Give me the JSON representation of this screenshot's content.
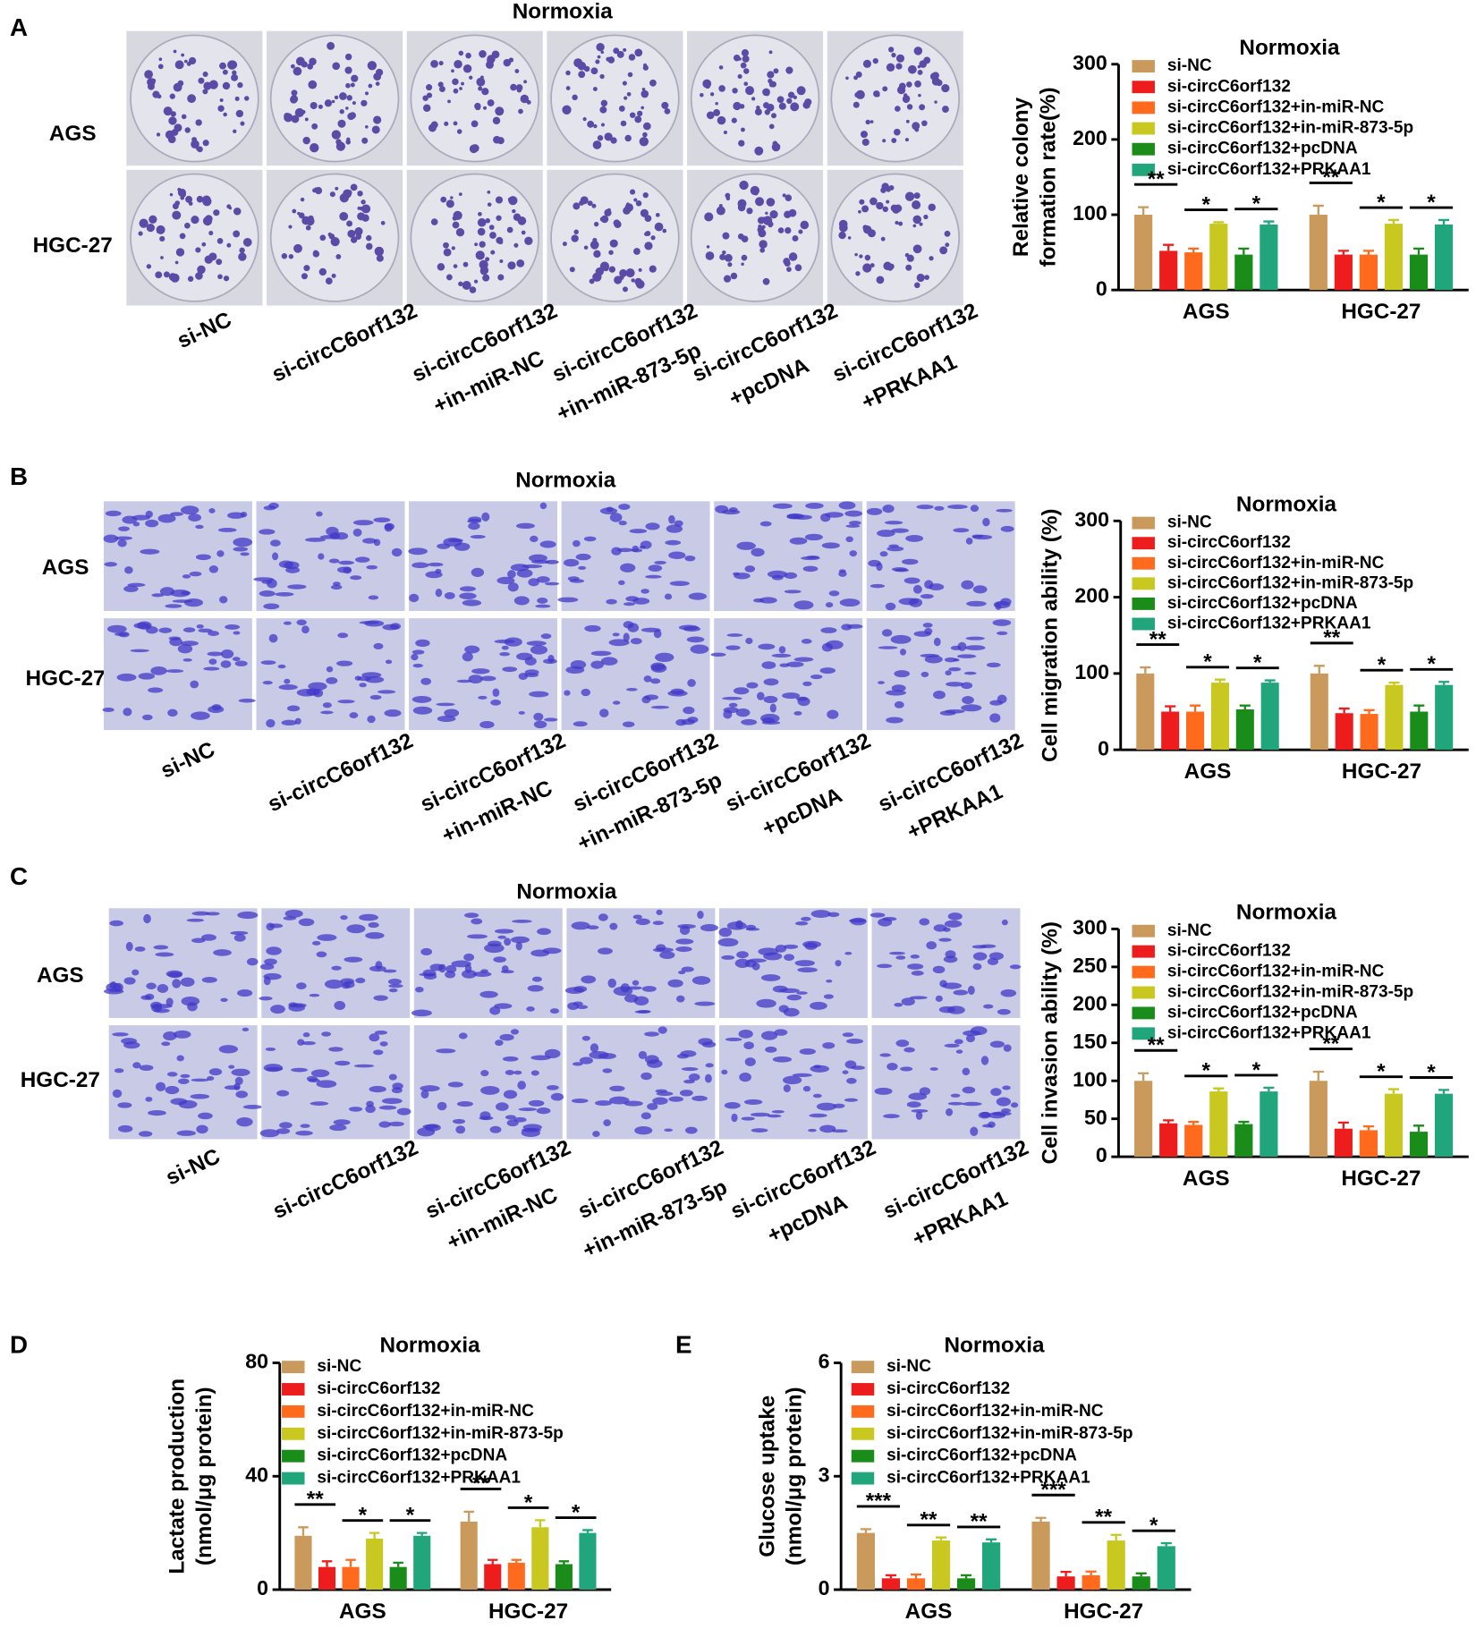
{
  "panels": [
    {
      "letter": "A",
      "title": "Normoxia",
      "rows": [
        "AGS",
        "HGC-27"
      ],
      "columns": [
        [
          "si-NC"
        ],
        [
          "si-circC6orf132"
        ],
        [
          "si-circC6orf132",
          "+in-miR-NC"
        ],
        [
          "si-circC6orf132",
          "+in-miR-873-5p"
        ],
        [
          "si-circC6orf132",
          "+pcDNA"
        ],
        [
          "si-circC6orf132",
          "+PRKAA1"
        ]
      ]
    },
    {
      "letter": "B",
      "title": "Normoxia",
      "rows": [
        "AGS",
        "HGC-27"
      ],
      "columns": [
        [
          "si-NC"
        ],
        [
          "si-circC6orf132"
        ],
        [
          "si-circC6orf132",
          "+in-miR-NC"
        ],
        [
          "si-circC6orf132",
          "+in-miR-873-5p"
        ],
        [
          "si-circC6orf132",
          "+pcDNA"
        ],
        [
          "si-circC6orf132",
          "+PRKAA1"
        ]
      ]
    },
    {
      "letter": "C",
      "title": "Normoxia",
      "rows": [
        "AGS",
        "HGC-27"
      ],
      "columns": [
        [
          "si-NC"
        ],
        [
          "si-circC6orf132"
        ],
        [
          "si-circC6orf132",
          "+in-miR-NC"
        ],
        [
          "si-circC6orf132",
          "+in-miR-873-5p"
        ],
        [
          "si-circC6orf132",
          "+pcDNA"
        ],
        [
          "si-circC6orf132",
          "+PRKAA1"
        ]
      ]
    }
  ],
  "chart_data": [
    {
      "type": "bar",
      "title": "Normoxia",
      "ylabel": [
        "Relative colony",
        "formation rate(%)"
      ],
      "categories": [
        "AGS",
        "HGC-27"
      ],
      "ylim": [
        0,
        300
      ],
      "yticks": [
        0,
        100,
        200,
        300
      ],
      "series": [
        {
          "name": "si-NC",
          "color": "#c99a5b",
          "values": [
            100,
            100
          ],
          "errors": [
            10,
            12
          ]
        },
        {
          "name": "si-circC6orf132",
          "color": "#ee1d1d",
          "values": [
            52,
            47
          ],
          "errors": [
            8,
            5
          ]
        },
        {
          "name": "si-circC6orf132+in-miR-NC",
          "color": "#ff6a1c",
          "values": [
            50,
            47
          ],
          "errors": [
            5,
            5
          ]
        },
        {
          "name": "si-circC6orf132+in-miR-873-5p",
          "color": "#c8c820",
          "values": [
            88,
            88
          ],
          "errors": [
            2,
            5
          ]
        },
        {
          "name": "si-circC6orf132+pcDNA",
          "color": "#1a8c1a",
          "values": [
            47,
            47
          ],
          "errors": [
            8,
            8
          ]
        },
        {
          "name": "si-circC6orf132+PRKAA1",
          "color": "#20a67a",
          "values": [
            87,
            87
          ],
          "errors": [
            4,
            6
          ]
        }
      ],
      "annotations": [
        [
          "**",
          "*",
          "*"
        ],
        [
          "**",
          "*",
          "*"
        ]
      ]
    },
    {
      "type": "bar",
      "title": "Normoxia",
      "ylabel": [
        "Cell migration ability (%)"
      ],
      "categories": [
        "AGS",
        "HGC-27"
      ],
      "ylim": [
        0,
        300
      ],
      "yticks": [
        0,
        100,
        200,
        300
      ],
      "series": [
        {
          "name": "si-NC",
          "color": "#c99a5b",
          "values": [
            100,
            100
          ],
          "errors": [
            8,
            10
          ]
        },
        {
          "name": "si-circC6orf132",
          "color": "#ee1d1d",
          "values": [
            50,
            48
          ],
          "errors": [
            7,
            6
          ]
        },
        {
          "name": "si-circC6orf132+in-miR-NC",
          "color": "#ff6a1c",
          "values": [
            50,
            47
          ],
          "errors": [
            8,
            5
          ]
        },
        {
          "name": "si-circC6orf132+in-miR-873-5p",
          "color": "#c8c820",
          "values": [
            88,
            85
          ],
          "errors": [
            4,
            3
          ]
        },
        {
          "name": "si-circC6orf132+pcDNA",
          "color": "#1a8c1a",
          "values": [
            53,
            50
          ],
          "errors": [
            5,
            8
          ]
        },
        {
          "name": "si-circC6orf132+PRKAA1",
          "color": "#20a67a",
          "values": [
            88,
            85
          ],
          "errors": [
            3,
            4
          ]
        }
      ],
      "annotations": [
        [
          "**",
          "*",
          "*"
        ],
        [
          "**",
          "*",
          "*"
        ]
      ]
    },
    {
      "type": "bar",
      "title": "Normoxia",
      "ylabel": [
        "Cell invasion ability (%)"
      ],
      "categories": [
        "AGS",
        "HGC-27"
      ],
      "ylim": [
        0,
        300
      ],
      "yticks": [
        0,
        50,
        100,
        150,
        200,
        250,
        300
      ],
      "series": [
        {
          "name": "si-NC",
          "color": "#c99a5b",
          "values": [
            100,
            100
          ],
          "errors": [
            10,
            12
          ]
        },
        {
          "name": "si-circC6orf132",
          "color": "#ee1d1d",
          "values": [
            44,
            37
          ],
          "errors": [
            4,
            8
          ]
        },
        {
          "name": "si-circC6orf132+in-miR-NC",
          "color": "#ff6a1c",
          "values": [
            42,
            35
          ],
          "errors": [
            4,
            5
          ]
        },
        {
          "name": "si-circC6orf132+in-miR-873-5p",
          "color": "#c8c820",
          "values": [
            86,
            83
          ],
          "errors": [
            4,
            6
          ]
        },
        {
          "name": "si-circC6orf132+pcDNA",
          "color": "#1a8c1a",
          "values": [
            43,
            33
          ],
          "errors": [
            3,
            8
          ]
        },
        {
          "name": "si-circC6orf132+PRKAA1",
          "color": "#20a67a",
          "values": [
            86,
            83
          ],
          "errors": [
            5,
            5
          ]
        }
      ],
      "annotations": [
        [
          "**",
          "*",
          "*"
        ],
        [
          "**",
          "*",
          "*"
        ]
      ]
    },
    {
      "type": "bar",
      "panel": "D",
      "title": "Normoxia",
      "ylabel": [
        "Lactate production",
        "(nmol/μg protein)"
      ],
      "categories": [
        "AGS",
        "HGC-27"
      ],
      "ylim": [
        0,
        80
      ],
      "yticks": [
        0,
        40,
        80
      ],
      "series": [
        {
          "name": "si-NC",
          "color": "#c99a5b",
          "values": [
            19,
            24
          ],
          "errors": [
            3,
            3.5
          ]
        },
        {
          "name": "si-circC6orf132",
          "color": "#ee1d1d",
          "values": [
            8,
            9
          ],
          "errors": [
            2,
            1.5
          ]
        },
        {
          "name": "si-circC6orf132+in-miR-NC",
          "color": "#ff6a1c",
          "values": [
            8,
            9.5
          ],
          "errors": [
            2.5,
            1
          ]
        },
        {
          "name": "si-circC6orf132+in-miR-873-5p",
          "color": "#c8c820",
          "values": [
            18,
            22
          ],
          "errors": [
            2,
            2.5
          ]
        },
        {
          "name": "si-circC6orf132+pcDNA",
          "color": "#1a8c1a",
          "values": [
            8,
            9
          ],
          "errors": [
            1.5,
            1
          ]
        },
        {
          "name": "si-circC6orf132+PRKAA1",
          "color": "#20a67a",
          "values": [
            19,
            20
          ],
          "errors": [
            1,
            1
          ]
        }
      ],
      "annotations": [
        [
          "**",
          "*",
          "*"
        ],
        [
          "**",
          "*",
          "*"
        ]
      ]
    },
    {
      "type": "bar",
      "panel": "E",
      "title": "Normoxia",
      "ylabel": [
        "Glucose uptake",
        "(nmol/μg protein)"
      ],
      "categories": [
        "AGS",
        "HGC-27"
      ],
      "ylim": [
        0,
        6
      ],
      "yticks": [
        0,
        3,
        6
      ],
      "series": [
        {
          "name": "si-NC",
          "color": "#c99a5b",
          "values": [
            1.5,
            1.8
          ],
          "errors": [
            0.1,
            0.1
          ]
        },
        {
          "name": "si-circC6orf132",
          "color": "#ee1d1d",
          "values": [
            0.3,
            0.35
          ],
          "errors": [
            0.08,
            0.12
          ]
        },
        {
          "name": "si-circC6orf132+in-miR-NC",
          "color": "#ff6a1c",
          "values": [
            0.3,
            0.38
          ],
          "errors": [
            0.1,
            0.1
          ]
        },
        {
          "name": "si-circC6orf132+in-miR-873-5p",
          "color": "#c8c820",
          "values": [
            1.3,
            1.3
          ],
          "errors": [
            0.08,
            0.15
          ]
        },
        {
          "name": "si-circC6orf132+pcDNA",
          "color": "#1a8c1a",
          "values": [
            0.3,
            0.35
          ],
          "errors": [
            0.08,
            0.08
          ]
        },
        {
          "name": "si-circC6orf132+PRKAA1",
          "color": "#20a67a",
          "values": [
            1.25,
            1.15
          ],
          "errors": [
            0.08,
            0.08
          ]
        }
      ],
      "annotations": [
        [
          "***",
          "**",
          "**"
        ],
        [
          "***",
          "**",
          "*"
        ]
      ]
    }
  ]
}
